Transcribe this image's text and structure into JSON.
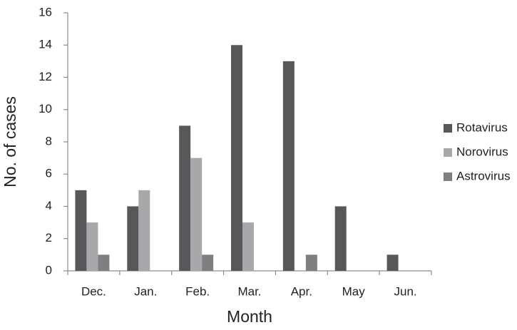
{
  "chart_data": {
    "type": "bar",
    "x_label": "Month",
    "y_label": "No. of cases",
    "categories": [
      "Dec.",
      "Jan.",
      "Feb.",
      "Mar.",
      "Apr.",
      "May",
      "Jun."
    ],
    "series": [
      {
        "name": "Rotavirus",
        "color": "#58585a",
        "values": [
          5,
          4,
          9,
          14,
          13,
          4,
          1
        ]
      },
      {
        "name": "Norovirus",
        "color": "#a8a8aa",
        "values": [
          3,
          5,
          7,
          3,
          0,
          0,
          0
        ]
      },
      {
        "name": "Astrovirus",
        "color": "#7f7f81",
        "values": [
          1,
          0,
          1,
          0,
          1,
          0,
          0
        ]
      }
    ],
    "ylim": [
      0,
      16
    ],
    "yticks": [
      0,
      2,
      4,
      6,
      8,
      10,
      12,
      14,
      16
    ],
    "grid": false,
    "legend": "right"
  }
}
